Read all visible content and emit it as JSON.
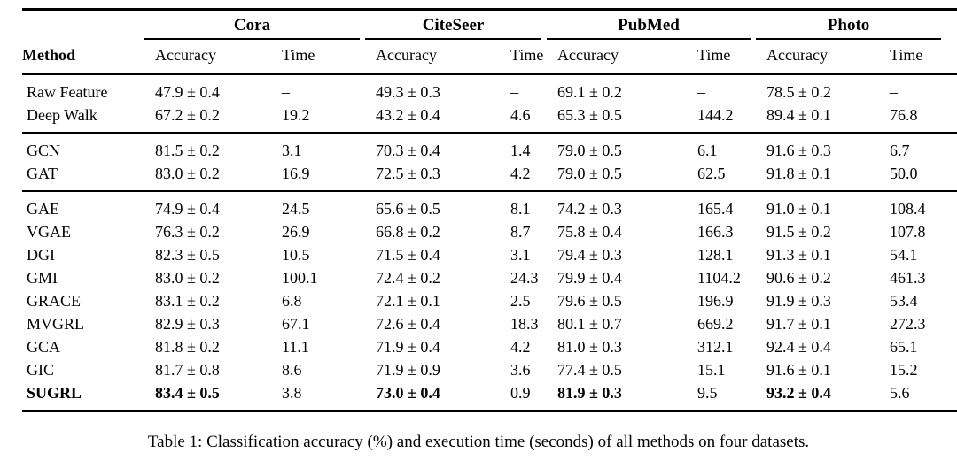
{
  "table": {
    "caption": "Table 1: Classification accuracy (%) and execution time (seconds) of all methods on four datasets.",
    "col_method": "Method",
    "col_accuracy": "Accuracy",
    "col_time": "Time",
    "datasets": [
      "Cora",
      "CiteSeer",
      "PubMed",
      "Photo"
    ],
    "blocks": [
      [
        {
          "method": "Raw Feature",
          "values": [
            "47.9 ± 0.4",
            "–",
            "49.3 ± 0.3",
            "–",
            "69.1 ± 0.2",
            "–",
            "78.5 ± 0.2",
            "–"
          ]
        },
        {
          "method": "Deep Walk",
          "values": [
            "67.2 ± 0.2",
            "19.2",
            "43.2 ± 0.4",
            "4.6",
            "65.3 ± 0.5",
            "144.2",
            "89.4 ± 0.1",
            "76.8"
          ]
        }
      ],
      [
        {
          "method": "GCN",
          "values": [
            "81.5 ± 0.2",
            "3.1",
            "70.3 ± 0.4",
            "1.4",
            "79.0 ± 0.5",
            "6.1",
            "91.6 ± 0.3",
            "6.7"
          ]
        },
        {
          "method": "GAT",
          "values": [
            "83.0 ± 0.2",
            "16.9",
            "72.5 ± 0.3",
            "4.2",
            "79.0 ± 0.5",
            "62.5",
            "91.8 ± 0.1",
            "50.0"
          ]
        }
      ],
      [
        {
          "method": "GAE",
          "values": [
            "74.9 ± 0.4",
            "24.5",
            "65.6 ± 0.5",
            "8.1",
            "74.2 ± 0.3",
            "165.4",
            "91.0 ± 0.1",
            "108.4"
          ]
        },
        {
          "method": "VGAE",
          "values": [
            "76.3 ± 0.2",
            "26.9",
            "66.8 ± 0.2",
            "8.7",
            "75.8 ± 0.4",
            "166.3",
            "91.5 ± 0.2",
            "107.8"
          ]
        },
        {
          "method": "DGI",
          "values": [
            "82.3 ± 0.5",
            "10.5",
            "71.5 ± 0.4",
            "3.1",
            "79.4 ± 0.3",
            "128.1",
            "91.3 ± 0.1",
            "54.1"
          ]
        },
        {
          "method": "GMI",
          "values": [
            "83.0 ± 0.2",
            "100.1",
            "72.4 ± 0.2",
            "24.3",
            "79.9 ± 0.4",
            "1104.2",
            "90.6 ± 0.2",
            "461.3"
          ]
        },
        {
          "method": "GRACE",
          "values": [
            "83.1 ± 0.2",
            "6.8",
            "72.1 ± 0.1",
            "2.5",
            "79.6 ± 0.5",
            "196.9",
            "91.9 ± 0.3",
            "53.4"
          ]
        },
        {
          "method": "MVGRL",
          "values": [
            "82.9 ± 0.3",
            "67.1",
            "72.6 ± 0.4",
            "18.3",
            "80.1 ± 0.7",
            "669.2",
            "91.7 ± 0.1",
            "272.3"
          ]
        },
        {
          "method": "GCA",
          "values": [
            "81.8 ± 0.2",
            "11.1",
            "71.9 ± 0.4",
            "4.2",
            "81.0 ± 0.3",
            "312.1",
            "92.4 ± 0.4",
            "65.1"
          ]
        },
        {
          "method": "GIC",
          "values": [
            "81.7 ± 0.8",
            "8.6",
            "71.9 ± 0.9",
            "3.6",
            "77.4 ± 0.5",
            "15.1",
            "91.6 ± 0.1",
            "15.2"
          ]
        },
        {
          "method": "SUGRL",
          "bold_method": true,
          "bold_cells": [
            0,
            2,
            4,
            6
          ],
          "values": [
            "83.4 ± 0.5",
            "3.8",
            "73.0 ± 0.4",
            "0.9",
            "81.9 ± 0.3",
            "9.5",
            "93.2 ± 0.4",
            "5.6"
          ]
        }
      ]
    ]
  }
}
